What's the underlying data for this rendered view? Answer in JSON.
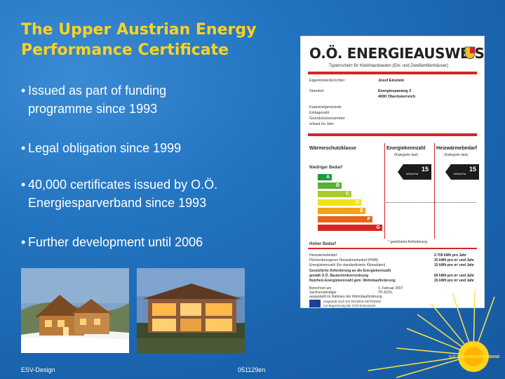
{
  "slide": {
    "title": "The Upper Austrian Energy\nPerformance Certificate",
    "bullets": [
      {
        "line1": "Issued as part of funding",
        "line2": "programme since 1993"
      },
      {
        "line1": "Legal obligation since 1999",
        "line2": ""
      },
      {
        "line1": "40,000 certificates issued by O.Ö.",
        "line2": "Energiesparverband since 1993"
      },
      {
        "line1": "Further development until 2006",
        "line2": ""
      }
    ],
    "bullet_glyph": "•"
  },
  "footer": {
    "left": "ESV-Design",
    "right": "051129en"
  },
  "certificate": {
    "heading": "O.Ö. ENERGIEAUSWEIS",
    "subheading": "Typenschein für Kleinhausbauten (Ein- und Zweifamilienhäuser)",
    "fields": [
      {
        "label": "Eigentümer/Errichter",
        "value": "Josef Einstein"
      },
      {
        "label": "Standort",
        "value": "Energiesparweg 3"
      },
      {
        "label": "",
        "value": "4000 Oberösterreich"
      },
      {
        "label": "Katastralgemeinde",
        "value": ""
      },
      {
        "label": "Einlagezahl",
        "value": ""
      },
      {
        "label": "Grundstücksnummer",
        "value": ""
      },
      {
        "label": "erbaut im Jahr",
        "value": ""
      }
    ],
    "columns": [
      "Wärmeschutzklasse",
      "Energiekennzahl",
      "Heizwärmebedarf"
    ],
    "column_notes": [
      "(Kategorie laut)",
      "(Kategorie laut)"
    ],
    "top_label": "Niedriger Bedarf",
    "bottom_label": "Hoher Bedarf",
    "classes": [
      "A",
      "B",
      "C",
      "D",
      "E",
      "F",
      "G"
    ],
    "class_colors": [
      "#1a9a3c",
      "#59b134",
      "#a8cc2b",
      "#f2e21a",
      "#f3a31b",
      "#e8661c",
      "#d7261f"
    ],
    "badge1": {
      "value": "15",
      "unit": "kWh/m²/a"
    },
    "badge2": {
      "value": "15",
      "unit": "kWh/m²/a"
    },
    "footnote": "* gewichtete Anforderung",
    "details": [
      {
        "label": "Heizwärmebedarf",
        "value": "2.700 kWh pro Jahr"
      },
      {
        "label": "Flächenbezogener Heizwärmebedarf (HWB)",
        "value": "15 kWh pro m² und Jahr"
      },
      {
        "label": "Energiekennzahl (für standardisierte Klimadaten)",
        "value": "15 kWh pro m² und Jahr"
      },
      {
        "label": "Gesetzliche Anforderung an die Energiekennzahl",
        "value": ""
      },
      {
        "label": "gemäß O.Ö. Bautechnikverordnung",
        "value": "60 kWh pro m² und Jahr"
      },
      {
        "label": "Nutzheiz-Energiekennzahl gem. Wohnbauförderung",
        "value": "15 kWh pro m² und Jahr"
      }
    ],
    "signoff": [
      {
        "label": "Berechnet am",
        "value": "3. Februar 2007"
      },
      {
        "label": "Sachverständiger",
        "value": "TP-42/XL"
      },
      {
        "label": "ausgestellt im Rahmen der Wohnbauförderung",
        "value": ""
      }
    ],
    "eu_text": [
      "eingestuft nach EG-Richtlinie 93/76/EWG",
      "zur Begrenzung der CO2-Emissionen"
    ]
  },
  "logo": {
    "text": "O.Ö. ENERGIESPARVERBAND"
  }
}
